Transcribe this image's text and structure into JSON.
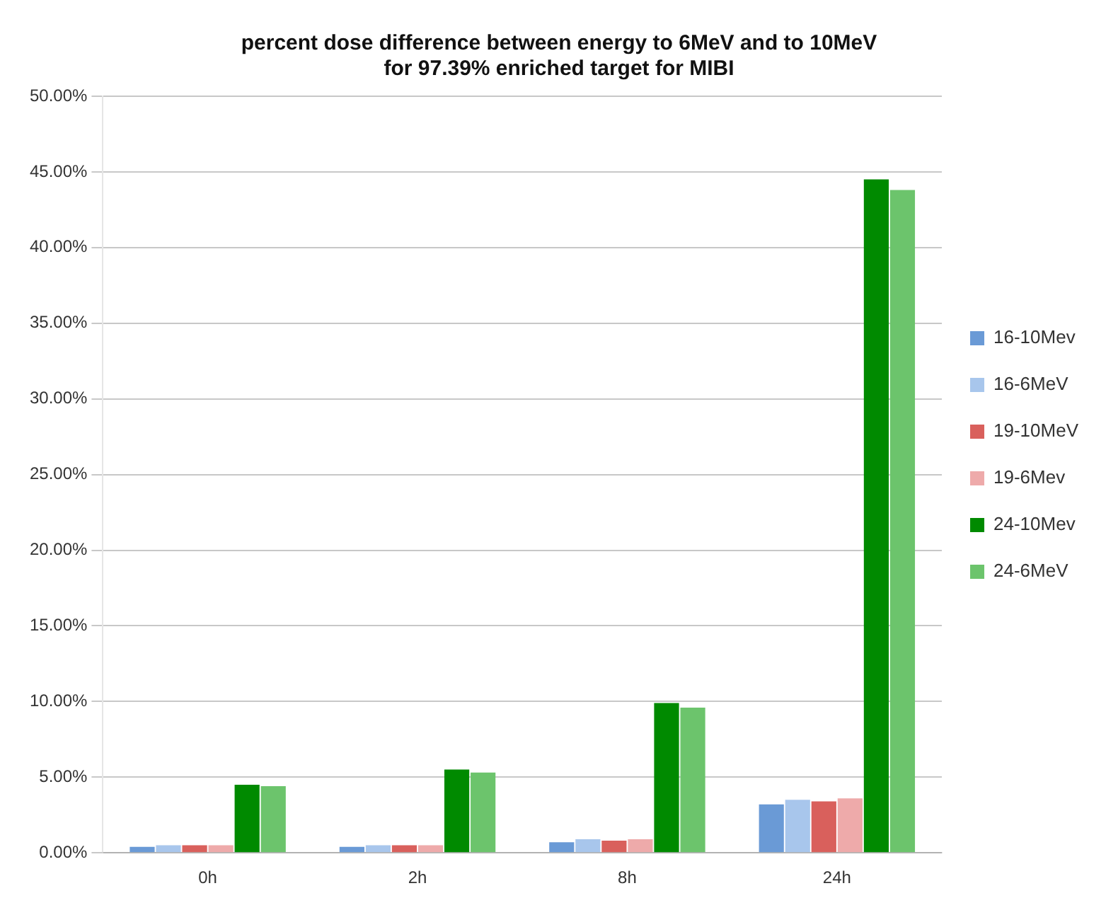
{
  "chart_data": {
    "type": "bar",
    "title": "percent dose difference between energy to 6MeV and to 10MeV\nfor 97.39% enriched target for MIBI",
    "categories": [
      "0h",
      "2h",
      "8h",
      "24h"
    ],
    "series": [
      {
        "name": "16-10Mev",
        "color": "#6a9ad6",
        "values": [
          0.4,
          0.4,
          0.7,
          3.2
        ]
      },
      {
        "name": "16-6MeV",
        "color": "#a8c6ec",
        "values": [
          0.5,
          0.5,
          0.9,
          3.5
        ]
      },
      {
        "name": "19-10MeV",
        "color": "#d9605c",
        "values": [
          0.5,
          0.5,
          0.8,
          3.4
        ]
      },
      {
        "name": "19-6Mev",
        "color": "#eeaaaa",
        "values": [
          0.5,
          0.5,
          0.9,
          3.6
        ]
      },
      {
        "name": "24-10Mev",
        "color": "#008a00",
        "values": [
          4.5,
          5.5,
          9.9,
          44.5
        ]
      },
      {
        "name": "24-6MeV",
        "color": "#6cc46c",
        "values": [
          4.4,
          5.3,
          9.6,
          43.8
        ]
      }
    ],
    "ylim": [
      0,
      50
    ],
    "yticks": [
      {
        "value": 0,
        "label": "0.00%"
      },
      {
        "value": 5,
        "label": "5.00%"
      },
      {
        "value": 10,
        "label": "10.00%"
      },
      {
        "value": 15,
        "label": "15.00%"
      },
      {
        "value": 20,
        "label": "20.00%"
      },
      {
        "value": 25,
        "label": "25.00%"
      },
      {
        "value": 30,
        "label": "30.00%"
      },
      {
        "value": 35,
        "label": "35.00%"
      },
      {
        "value": 40,
        "label": "40.00%"
      },
      {
        "value": 45,
        "label": "45.00%"
      },
      {
        "value": 50,
        "label": "50.00%"
      }
    ],
    "grid": "y",
    "legend": "right"
  }
}
